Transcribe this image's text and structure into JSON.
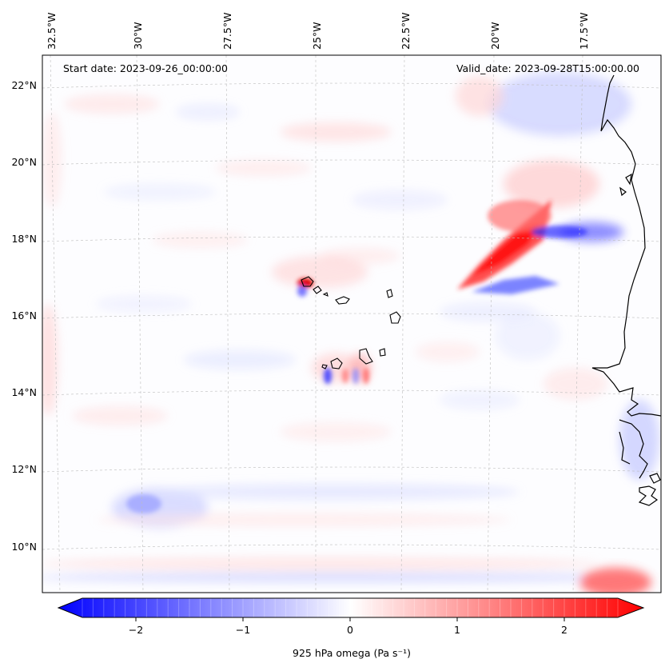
{
  "map": {
    "start_date_label": "Start date: 2023-09-26_00:00:00",
    "valid_date_label": "Valid_date: 2023-09-28T15:00:00.00",
    "lon_ticks": [
      "32.5°W",
      "30°W",
      "27.5°W",
      "25°W",
      "22.5°W",
      "20°W",
      "17.5°W"
    ],
    "lat_ticks": [
      "22°N",
      "20°N",
      "18°N",
      "16°N",
      "14°N",
      "12°N",
      "10°N"
    ],
    "coast_color": "#000000",
    "grid": true
  },
  "colorbar": {
    "label": "925 hPa omega (Pa s⁻¹)",
    "ticks": [
      "−2",
      "−1",
      "0",
      "1",
      "2"
    ],
    "tick_values": [
      -2,
      -1,
      0,
      1,
      2
    ],
    "vmin": -2.5,
    "vmax": 2.5,
    "colormap": "bwr",
    "low_color": "#0000ff",
    "mid_color": "#ffffff",
    "high_color": "#ff0000"
  }
}
